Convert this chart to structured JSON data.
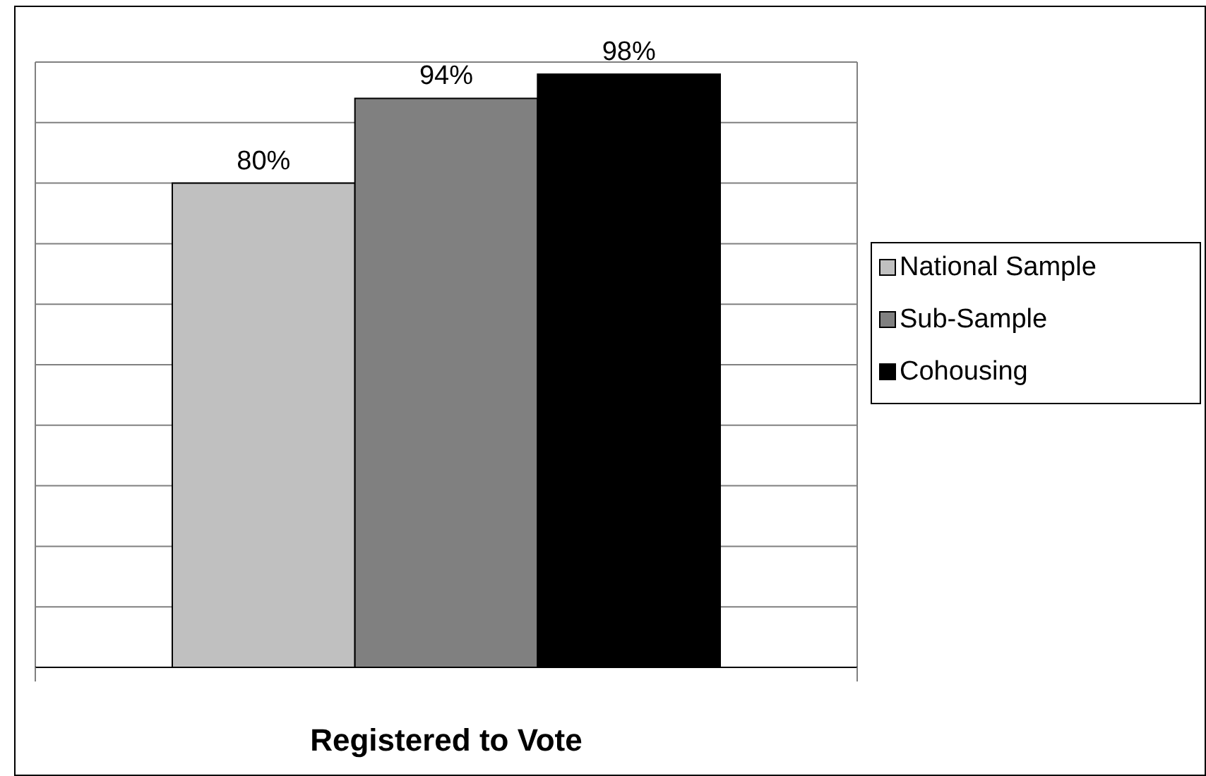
{
  "chart_data": {
    "type": "bar",
    "categories": [
      null
    ],
    "xlabel": "Registered to Vote",
    "series": [
      {
        "name": "National Sample",
        "color": "#c0c0c0",
        "values": [
          80
        ],
        "value_labels": [
          "80%"
        ]
      },
      {
        "name": "Sub-Sample",
        "color": "#808080",
        "values": [
          94
        ],
        "value_labels": [
          "94%"
        ]
      },
      {
        "name": "Cohousing",
        "color": "#000000",
        "values": [
          98
        ],
        "value_labels": [
          "98%"
        ]
      }
    ],
    "ylim": [
      0,
      100
    ],
    "yticks": [
      {
        "value": 0,
        "label": null
      },
      {
        "value": 10,
        "label": null
      },
      {
        "value": 20,
        "label": null
      },
      {
        "value": 30,
        "label": null
      },
      {
        "value": 40,
        "label": null
      },
      {
        "value": 50,
        "label": null
      },
      {
        "value": 60,
        "label": null
      },
      {
        "value": 70,
        "label": null
      },
      {
        "value": 80,
        "label": null
      },
      {
        "value": 90,
        "label": null
      },
      {
        "value": 100,
        "label": null
      }
    ],
    "grid": "y",
    "legend": "right"
  }
}
